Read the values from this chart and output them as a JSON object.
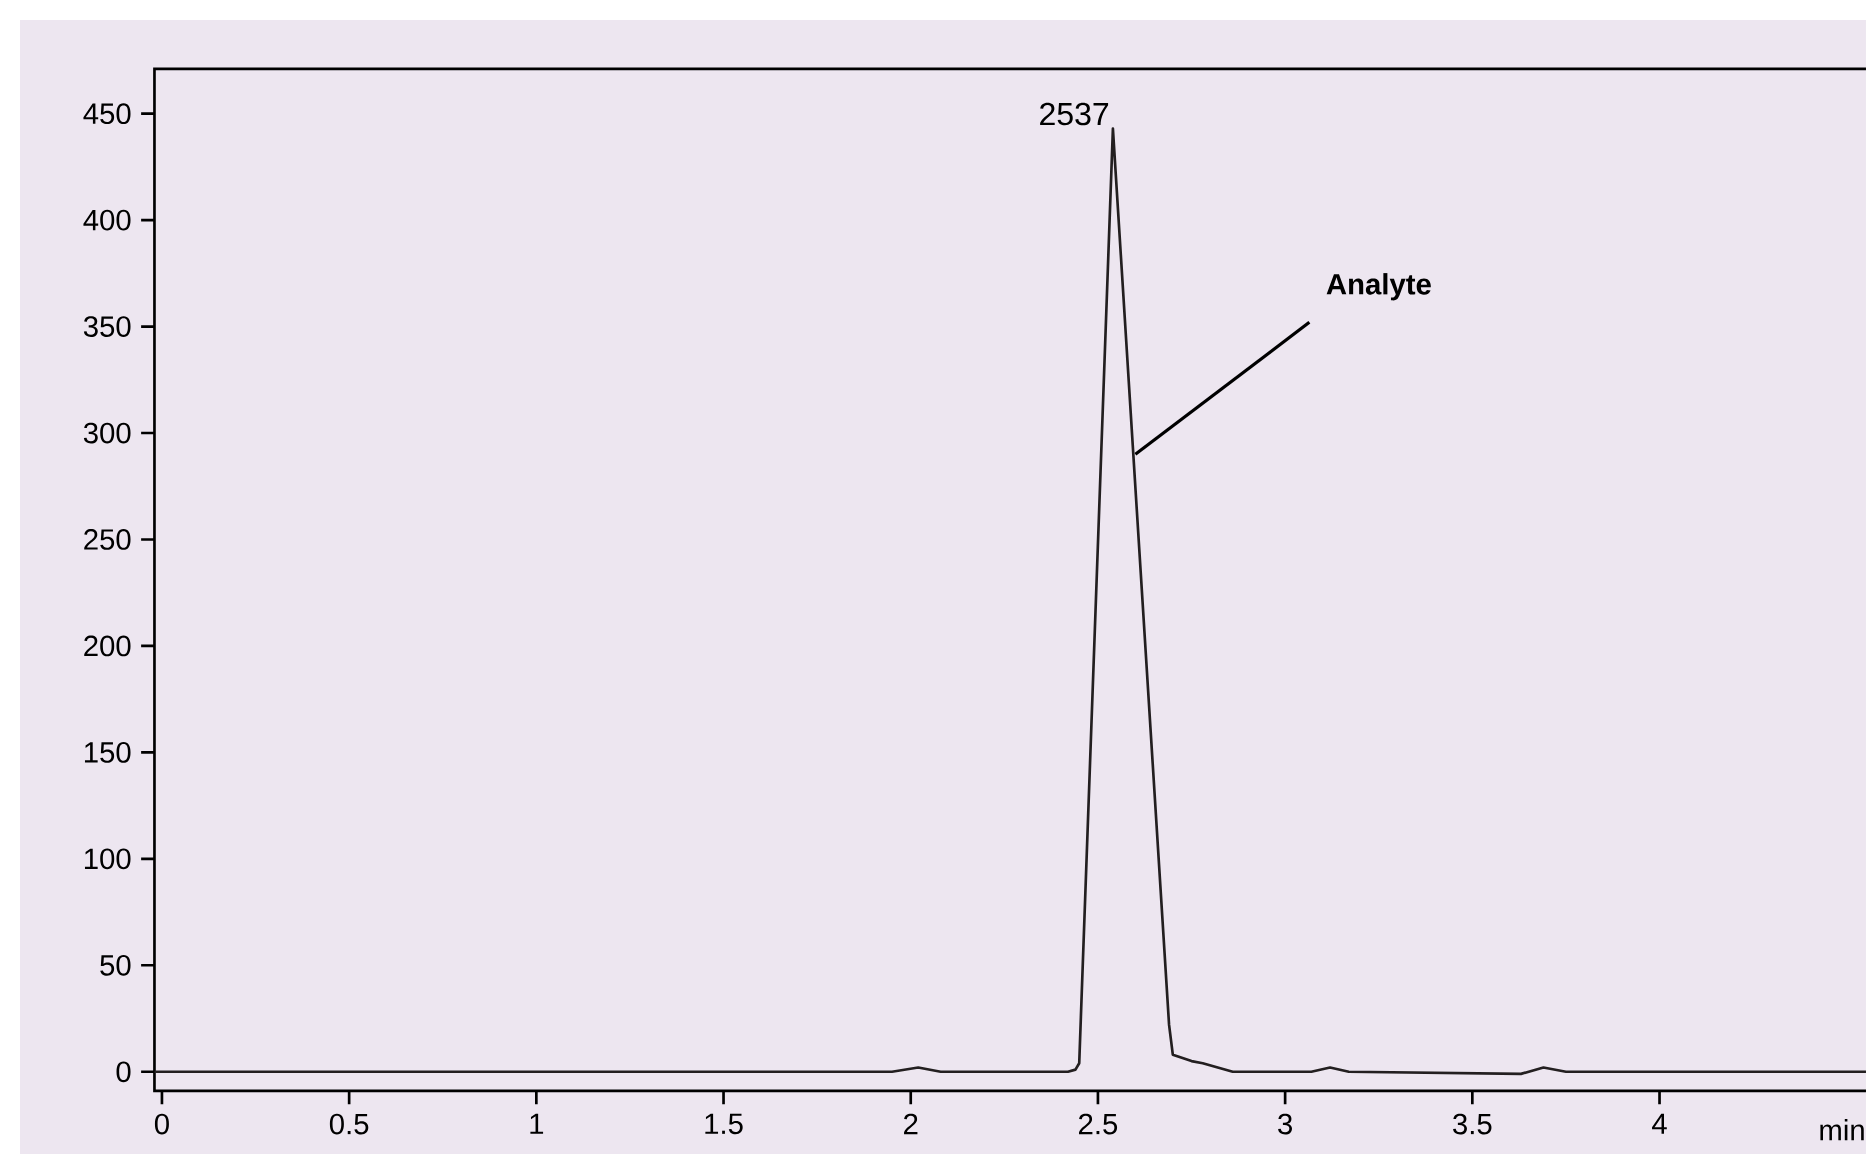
{
  "chart_data": {
    "type": "line",
    "xlabel": "min",
    "x": [
      -0.02,
      1.95,
      2.02,
      2.08,
      2.42,
      2.44,
      2.45,
      2.54,
      2.69,
      2.7,
      2.75,
      2.78,
      2.82,
      2.86,
      3.07,
      3.12,
      3.17,
      3.63,
      3.69,
      3.75,
      4.59
    ],
    "values": [
      0,
      0,
      2,
      0,
      0,
      1,
      4,
      443,
      22,
      8,
      5,
      4,
      2,
      0,
      0,
      2,
      0,
      -1,
      2,
      0,
      0
    ],
    "color": "#231f20",
    "xlim": [
      -0.02,
      4.59
    ],
    "ylim": [
      -9,
      471
    ],
    "xticks": [
      0,
      0.5,
      1,
      1.5,
      2,
      2.5,
      3,
      3.5,
      4
    ],
    "yticks": [
      0,
      50,
      100,
      150,
      200,
      250,
      300,
      350,
      400,
      450
    ],
    "grid": false,
    "marker": "none",
    "line_style": "solid",
    "annotations": [
      {
        "text": "2537",
        "x": 2.54,
        "y": 443
      },
      {
        "text": "**Analyte**",
        "x": 2.6,
        "y": 290
      }
    ]
  }
}
